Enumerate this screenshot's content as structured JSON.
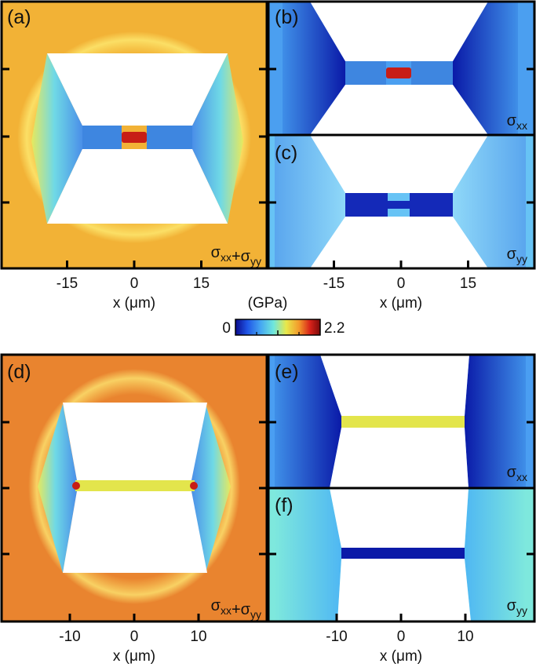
{
  "colorbar": {
    "unit": "(GPa)",
    "min_label": "0",
    "max_label": "2.2",
    "min": 0,
    "max": 2.2,
    "colors": [
      "#0a0a8c",
      "#1f55e6",
      "#46a8f2",
      "#6fe7dc",
      "#e8e84a",
      "#f39a2b",
      "#d8231a",
      "#7a0a0a"
    ]
  },
  "axis_label": "x (μm)",
  "top_group": {
    "ticks": [
      {
        "value": -15,
        "label": "-15"
      },
      {
        "value": 0,
        "label": "0"
      },
      {
        "value": 15,
        "label": "15"
      }
    ],
    "panels": {
      "a": {
        "label": "(a)",
        "quantity": "σxx+σyy",
        "background": "#f2b236"
      },
      "b": {
        "label": "(b)",
        "quantity": "σxx",
        "background": "#4b9ff0"
      },
      "c": {
        "label": "(c)",
        "quantity": "σyy",
        "background": "#67c3f5"
      }
    }
  },
  "bottom_group": {
    "ticks": [
      {
        "value": -10,
        "label": "-10"
      },
      {
        "value": 0,
        "label": "0"
      },
      {
        "value": 10,
        "label": "10"
      }
    ],
    "panels": {
      "d": {
        "label": "(d)",
        "quantity": "σxx+σyy",
        "background": "#e9842f"
      },
      "e": {
        "label": "(e)",
        "quantity": "σxx",
        "background": "#4a9ef2"
      },
      "f": {
        "label": "(f)",
        "quantity": "σyy",
        "background": "#7ee8dd"
      }
    }
  }
}
